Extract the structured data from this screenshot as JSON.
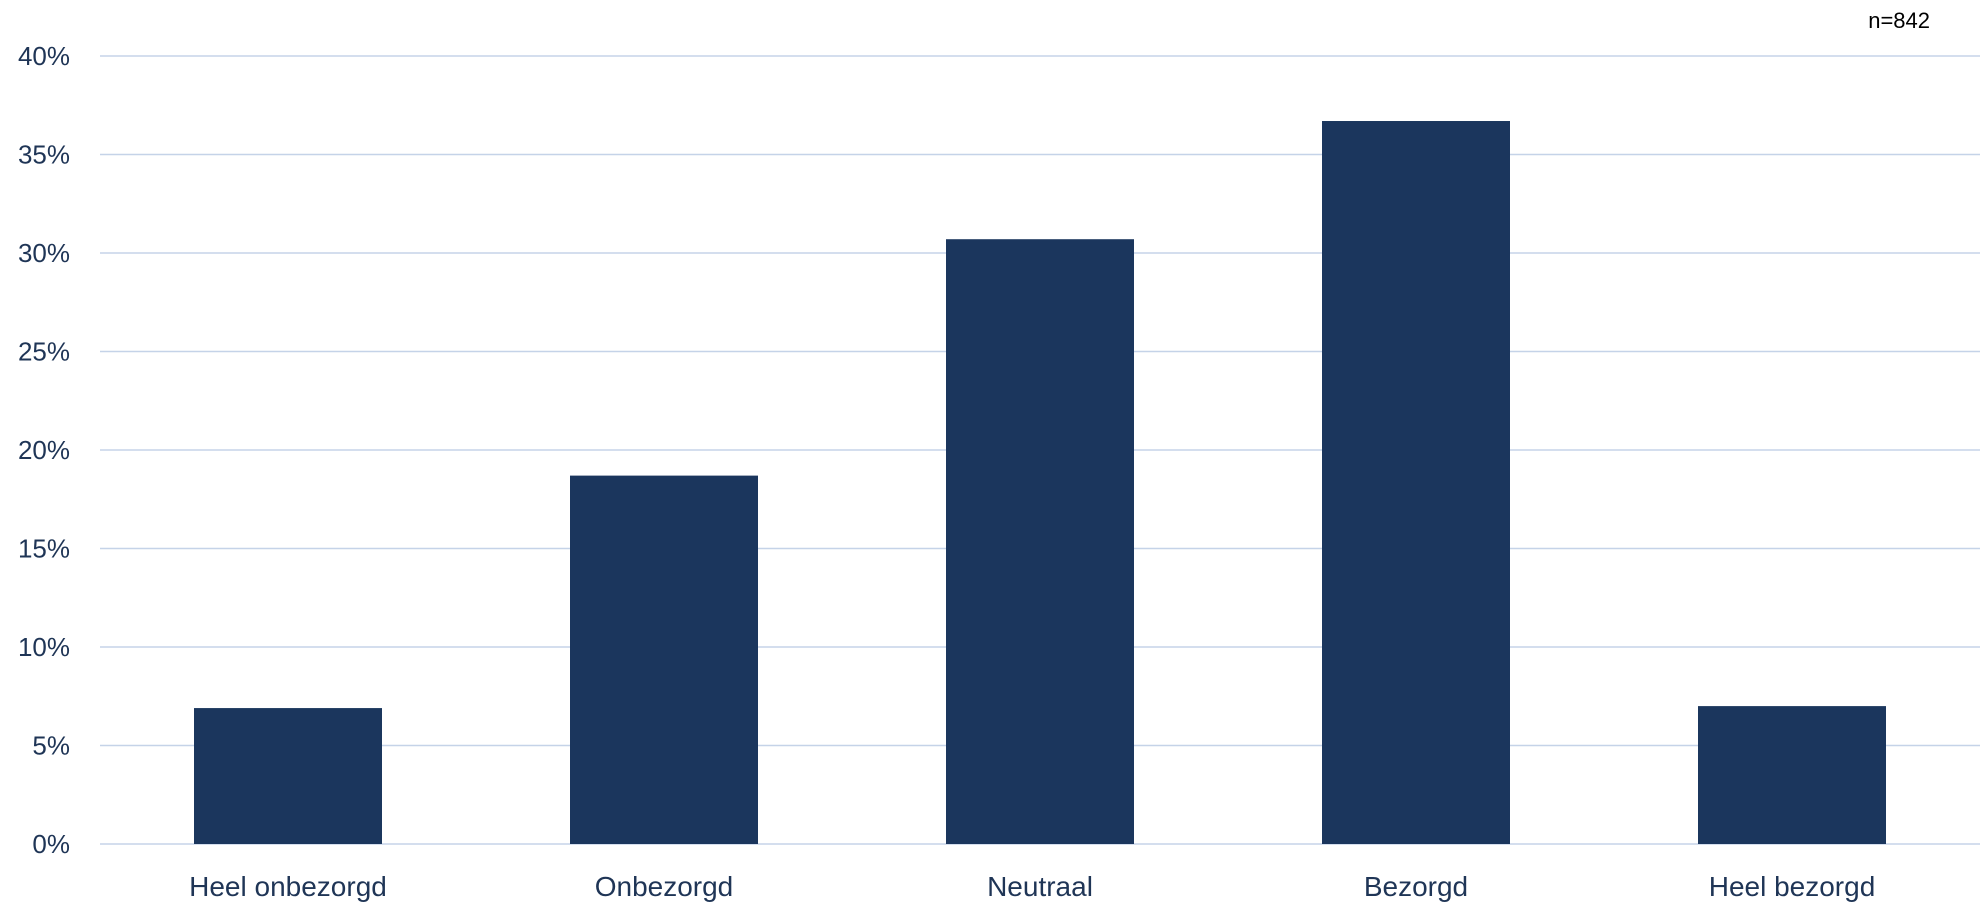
{
  "chart_data": {
    "type": "bar",
    "categories": [
      "Heel onbezorgd",
      "Onbezorgd",
      "Neutraal",
      "Bezorgd",
      "Heel bezorgd"
    ],
    "values": [
      6.9,
      18.7,
      30.7,
      36.7,
      7.0
    ],
    "title": "",
    "xlabel": "",
    "ylabel": "",
    "ylim": [
      0,
      40
    ],
    "yticks": [
      0,
      5,
      10,
      15,
      20,
      25,
      30,
      35,
      40
    ],
    "ytick_labels": [
      "0%",
      "5%",
      "10%",
      "15%",
      "20%",
      "25%",
      "30%",
      "35%",
      "40%"
    ],
    "annotation": "n=842",
    "grid": true,
    "legend": "none",
    "bar_color": "#1b365d",
    "grid_color": "#c5d3e8"
  }
}
